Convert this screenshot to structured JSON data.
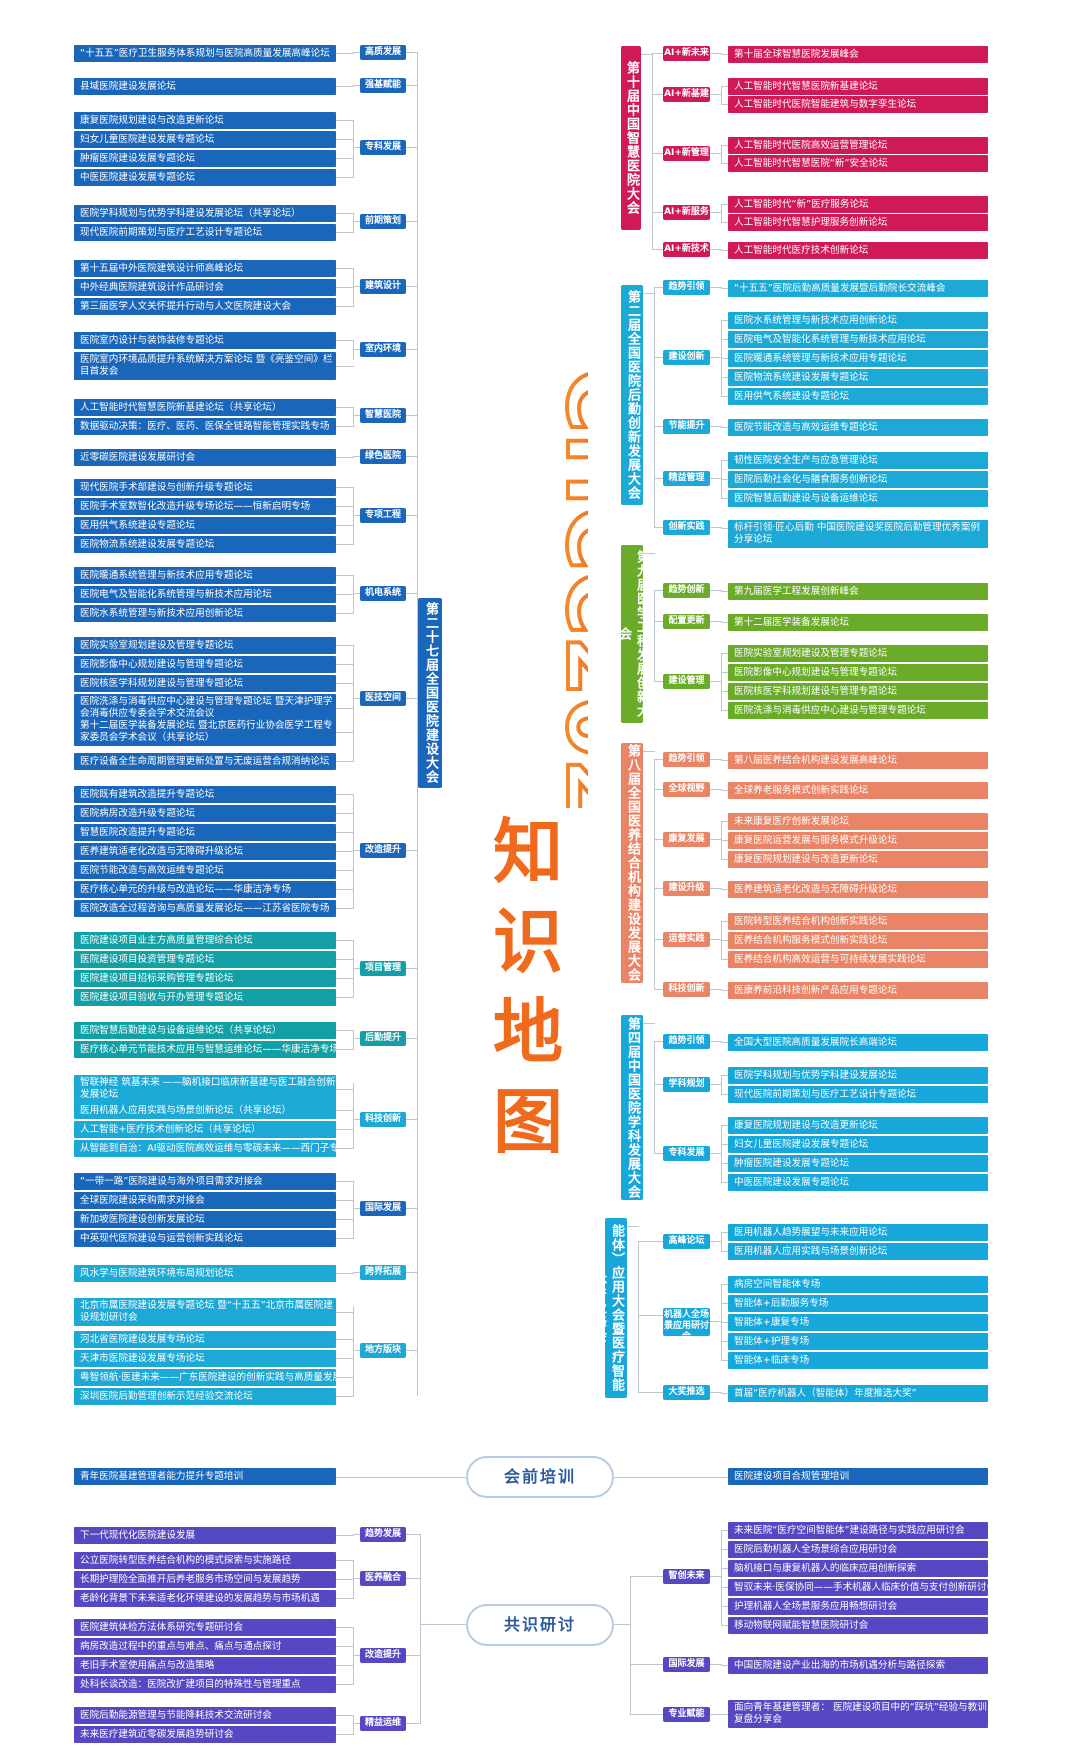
{
  "title": {
    "brand": "CHCC2026",
    "kw1": "知",
    "kw2": "识",
    "kw3": "地",
    "kw4": "图"
  },
  "center_nodes": {
    "pre": "会前培训",
    "consensus": "共识研讨"
  },
  "colors": {
    "blue": "#1a66ba",
    "cyan": "#1da9d6",
    "teal": "#12a0a6",
    "crimson": "#cf1a55",
    "green": "#6aab2a",
    "salmon": "#e98566",
    "sky": "#17a7db",
    "purple": "#5548c2",
    "orange": "#f06a1d"
  },
  "left": {
    "spine": "第二十七届全国医院建设大会",
    "groups": [
      {
        "cat": "高质发展",
        "items": [
          "“十五五”医疗卫生服务体系规划与医院高质量发展高峰论坛"
        ]
      },
      {
        "cat": "强基赋能",
        "items": [
          "县域医院建设发展论坛"
        ]
      },
      {
        "cat": "专科发展",
        "items": [
          "康复医院规划建设与改造更新论坛",
          "妇女儿童医院建设发展专题论坛",
          "肿瘤医院建设发展专题论坛",
          "中医医院建设发展专题论坛"
        ]
      },
      {
        "cat": "前期策划",
        "items": [
          "医院学科规划与优势学科建设发展论坛（共享论坛）",
          "现代医院前期策划与医疗工艺设计专题论坛"
        ]
      },
      {
        "cat": "建筑设计",
        "items": [
          "第十五届中外医院建筑设计师高峰论坛",
          "中外经典医院建筑设计作品研讨会",
          "第三届医学人文关怀提升行动与人文医院建设大会"
        ]
      },
      {
        "cat": "室内环境",
        "items": [
          "医院室内设计与装饰装修专题论坛",
          "医院室内环境品质提升系统解决方案论坛 暨《亮鉴空间》栏目首发会"
        ]
      },
      {
        "cat": "智慧医院",
        "items": [
          "人工智能时代智慧医院新基建论坛（共享论坛）",
          "数据驱动决策：医疗、医药、医保全链路智能管理实践专场"
        ]
      },
      {
        "cat": "绿色医院",
        "items": [
          "近零碳医院建设发展研讨会"
        ]
      },
      {
        "cat": "专项工程",
        "items": [
          "现代医院手术部建设与创新升级专题论坛",
          "医院手术室数智化改造升级专场论坛——恒新启明专场",
          "医用供气系统建设专题论坛",
          "医院物流系统建设发展专题论坛"
        ]
      },
      {
        "cat": "机电系统",
        "items": [
          "医院暖通系统管理与新技术应用专题论坛",
          "医院电气及智能化系统管理与新技术应用论坛",
          "医院水系统管理与新技术应用创新论坛"
        ]
      },
      {
        "cat": "医技空间",
        "items": [
          "医院实验室规划建设及管理专题论坛",
          "医院影像中心规划建设与管理专题论坛",
          "医院核医学科规划建设与管理专题论坛",
          "医院洗涤与消毒供应中心建设与管理专题论坛 暨天津护理学会消毒供应专委会学术交流会议",
          "第十二届医学装备发展论坛 暨北京医药行业协会医学工程专家委员会学术会议（共享论坛）",
          "医疗设备全生命周期管理更新处置与无废运营合规消纳论坛"
        ]
      },
      {
        "cat": "改造提升",
        "items": [
          "医院既有建筑改造提升专题论坛",
          "医院病房改造升级专题论坛",
          "智慧医院改造提升专题论坛",
          "医养建筑适老化改造与无障碍升级论坛",
          "医院节能改造与高效运维专题论坛",
          "医疗核心单元的升级与改造论坛——华康洁净专场",
          "医院改造全过程咨询与高质量发展论坛——江苏省医院专场"
        ]
      },
      {
        "cat": "项目管理",
        "items": [
          "医院建设项目业主方高质量管理综合论坛",
          "医院建设项目投资管理专题论坛",
          "医院建设项目招标采购管理专题论坛",
          "医院建设项目验收与开办管理专题论坛"
        ]
      },
      {
        "cat": "后勤提升",
        "items": [
          "医院智慧后勤建设与设备运维论坛（共享论坛）",
          "医疗核心单元节能技术应用与智慧运维论坛——华康洁净专场"
        ]
      },
      {
        "cat": "科技创新",
        "items": [
          "智联神经 筑基未来 ——脑机接口临床新基建与医工融合创新发展论坛",
          "医用机器人应用实践与场景创新论坛（共享论坛）",
          "人工智能+医疗技术创新论坛（共享论坛）",
          "从智能到自治：AI驱动医院高效运维与零碳未来——西门子专场"
        ]
      },
      {
        "cat": "国际发展",
        "items": [
          "“一带一路”医院建设与海外项目需求对接会",
          "全球医院建设采购需求对接会",
          "新加坡医院建设创新发展论坛",
          "中英现代医院建设与运营创新实践论坛"
        ]
      },
      {
        "cat": "跨界拓展",
        "items": [
          "风水学与医院建筑环境布局规划论坛"
        ]
      },
      {
        "cat": "地方版块",
        "items": [
          "北京市属医院建设发展专题论坛 暨“十五五”北京市属医院建设规划研讨会",
          "河北省医院建设发展专场论坛",
          "天津市医院建设发展专场论坛",
          "粤智领航·医建未来——广东医院建设的创新实践与高质量发展",
          "深圳医院后勤管理创新示范经验交流论坛"
        ]
      }
    ]
  },
  "right": {
    "blocks": [
      {
        "title": "第十届中国智慧医院大会",
        "rows": [
          {
            "cat": "AI+新未来",
            "items": [
              "第十届全球智慧医院发展峰会"
            ]
          },
          {
            "cat": "AI+新基建",
            "items": [
              "人工智能时代智慧医院新基建论坛",
              "人工智能时代医院智能建筑与数字孪生论坛"
            ]
          },
          {
            "cat": "AI+新管理",
            "items": [
              "人工智能时代医院高效运营管理论坛",
              "人工智能时代智慧医院“新”安全论坛"
            ]
          },
          {
            "cat": "AI+新服务",
            "items": [
              "人工智能时代“新”医疗服务论坛",
              "人工智能时代智慧护理服务创新论坛"
            ]
          },
          {
            "cat": "AI+新技术",
            "items": [
              "人工智能时代医疗技术创新论坛"
            ]
          }
        ]
      },
      {
        "title": "第二届全国医院后勤创新发展大会",
        "rows": [
          {
            "cat": "趋势引领",
            "items": [
              "“十五五”医院后勤高质量发展暨后勤院长交流峰会"
            ]
          },
          {
            "cat": "建设创新",
            "items": [
              "医院水系统管理与新技术应用创新论坛",
              "医院电气及智能化系统管理与新技术应用论坛",
              "医院暖通系统管理与新技术应用专题论坛",
              "医院物流系统建设发展专题论坛",
              "医用供气系统建设专题论坛"
            ]
          },
          {
            "cat": "节能提升",
            "items": [
              "医院节能改造与高效运维专题论坛"
            ]
          },
          {
            "cat": "精益管理",
            "items": [
              "韧性医院安全生产与应急管理论坛",
              "医院后勤社会化与膳食服务创新论坛",
              "医院智慧后勤建设与设备运维论坛"
            ]
          },
          {
            "cat": "创新实践",
            "items": [
              "标杆引领·匠心后勤 中国医院建设奖医院后勤管理优秀案例分享论坛"
            ]
          }
        ]
      },
      {
        "title": "第九届医学工程发展创新大会",
        "rows": [
          {
            "cat": "趋势创新",
            "items": [
              "第九届医学工程发展创新峰会"
            ]
          },
          {
            "cat": "配置更新",
            "items": [
              "第十二届医学装备发展论坛"
            ]
          },
          {
            "cat": "建设管理",
            "items": [
              "医院实验室规划建设及管理专题论坛",
              "医院影像中心规划建设与管理专题论坛",
              "医院核医学科规划建设与管理专题论坛",
              "医院洗涤与消毒供应中心建设与管理专题论坛"
            ]
          }
        ]
      },
      {
        "title": "第八届全国医养结合机构建设发展大会",
        "rows": [
          {
            "cat": "趋势引领",
            "items": [
              "第八届医养结合机构建设发展高峰论坛"
            ]
          },
          {
            "cat": "全球视野",
            "items": [
              "全球养老服务模式创新实践论坛"
            ]
          },
          {
            "cat": "康复发展",
            "items": [
              "未来康复医疗创新发展论坛",
              "康复医院运营发展与服务模式升级论坛",
              "康复医院规划建设与改造更新论坛"
            ]
          },
          {
            "cat": "建设升级",
            "items": [
              "医养建筑适老化改造与无障碍升级论坛"
            ]
          },
          {
            "cat": "运营实践",
            "items": [
              "医院转型医养结合机构创新实践论坛",
              "医养结合机构服务模式创新实践论坛",
              "医养结合机构高效运营与可持续发展实践论坛"
            ]
          },
          {
            "cat": "科技创新",
            "items": [
              "医康养前沿科技创新产品应用专题论坛"
            ]
          }
        ]
      },
      {
        "title": "第四届中国医院学科发展大会",
        "rows": [
          {
            "cat": "趋势引领",
            "items": [
              "全国大型医院高质量发展院长高端论坛"
            ]
          },
          {
            "cat": "学科规划",
            "items": [
              "医院学科规划与优势学科建设发展论坛",
              "现代医院前期策划与医疗工艺设计专题论坛"
            ]
          },
          {
            "cat": "专科发展",
            "items": [
              "康复医院规划建设与改造更新论坛",
              "妇女儿童医院建设发展专题论坛",
              "肿瘤医院建设发展专题论坛",
              "中医医院建设发展专题论坛"
            ]
          }
        ]
      },
      {
        "title": "第二届中国医疗机器人（智能体）应用大会暨医疗智能体产业峰会",
        "rows": [
          {
            "cat": "高峰论坛",
            "items": [
              "医用机器人趋势展望与未来应用论坛",
              "医用机器人应用实践与场景创新论坛"
            ]
          },
          {
            "cat": "机器人全场景应用研讨会",
            "items": [
              "病房空间智能体专场",
              "智能体+后勤服务专场",
              "智能体+康复专场",
              "智能体+护理专场",
              "智能体+临床专场"
            ]
          },
          {
            "cat": "大奖推选",
            "items": [
              "首届“医疗机器人（智能体）年度推选大奖”"
            ]
          }
        ]
      }
    ]
  },
  "pre_training": {
    "left": "青年医院基建管理者能力提升专题培训",
    "right": "医院建设项目合规管理培训"
  },
  "consensus": {
    "left": [
      {
        "cat": "趋势发展",
        "items": [
          "下一代现代化医院建设发展"
        ]
      },
      {
        "cat": "医养融合",
        "items": [
          "公立医院转型医养结合机构的模式探索与实施路径",
          "长期护理险全面推开后养老服务市场空间与发展趋势",
          "老龄化背景下未来适老化环境建设的发展趋势与市场机遇"
        ]
      },
      {
        "cat": "改造提升",
        "items": [
          "医院建筑体检方法体系研究专题研讨会",
          "病房改造过程中的重点与难点、痛点与通点探讨",
          "老旧手术室使用痛点与改造策略",
          "处科长谈改造：医院改扩建项目的特殊性与管理重点"
        ]
      },
      {
        "cat": "精益运维",
        "items": [
          "医院后勤能源管理与节能降耗技术交流研讨会",
          "未来医疗建筑近零碳发展趋势研讨会"
        ]
      }
    ],
    "right": [
      {
        "cat": "智创未来",
        "items": [
          "未来医院“医疗空间智能体”建设路径与实践应用研讨会",
          "医院后勤机器人全场景综合应用研讨会",
          "脑机接口与康复机器人的临床应用创新探索",
          "智驭未来·医保协同——手术机器人临床价值与支付创新研讨会",
          "护理机器人全场景服务应用畅想研讨会",
          "移动物联网赋能智慧医院研讨会"
        ]
      },
      {
        "cat": "国际发展",
        "items": [
          "中国医院建设产业出海的市场机遇分析与路径探索"
        ]
      },
      {
        "cat": "专业赋能",
        "items": [
          "面向青年基建管理者： 医院建设项目中的“踩坑”经验与教训复盘分享会"
        ]
      }
    ]
  }
}
